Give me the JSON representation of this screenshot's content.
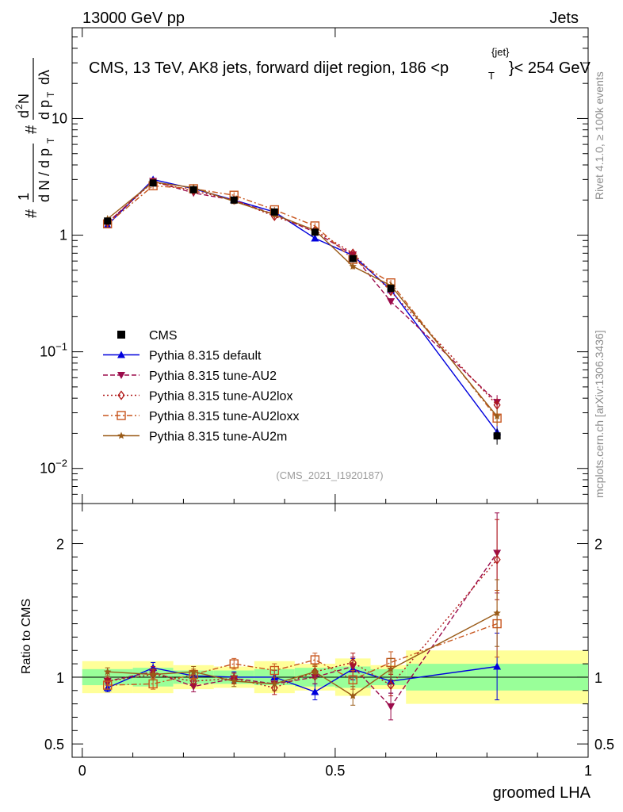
{
  "header": {
    "left_label": "13000 GeV pp",
    "right_label": "Jets"
  },
  "side_labels": {
    "rivet": "Rivet 4.1.0, ≥ 100k events",
    "mcplots": "mcplots.cern.ch [arXiv:1306.3436]"
  },
  "chart_data": {
    "type": "line",
    "title": "CMS, 13 TeV, AK8 jets, forward dijet region, 186 < p_T^{jet} < 254 GeV",
    "title_main": "CMS, 13 TeV, AK8 jets, forward dijet region, 186 <p",
    "title_sub": "T",
    "title_sup": "{jet}",
    "title_tail": "}< 254 GeV",
    "analysis_tag": "(CMS_2021_I1920187)",
    "xlabel": "groomed LHA",
    "ylabel": "1/dN/dp_T  d²N/dp_T dλ",
    "ratio_ylabel": "Ratio to CMS",
    "xlim": [
      -0.02,
      1.0
    ],
    "ylim": [
      0.005,
      60
    ],
    "yscale": "log",
    "ratio_ylim": [
      0.4,
      2.3
    ],
    "x_ticks": [
      "0",
      "0.5",
      "1"
    ],
    "y_ticks": [
      "10^-2",
      "10^-1",
      "1",
      "10"
    ],
    "ratio_ticks": [
      "0.5",
      "1",
      "2"
    ],
    "x": [
      0.05,
      0.14,
      0.22,
      0.3,
      0.38,
      0.46,
      0.535,
      0.61,
      0.82
    ],
    "bin_edges": [
      0.0,
      0.1,
      0.18,
      0.26,
      0.34,
      0.42,
      0.5,
      0.57,
      0.64,
      1.0
    ],
    "data": {
      "name": "CMS",
      "values": [
        1.32,
        2.8,
        2.45,
        2.0,
        1.58,
        1.06,
        0.63,
        0.35,
        0.019
      ],
      "errors": [
        0.06,
        0.1,
        0.08,
        0.07,
        0.06,
        0.05,
        0.03,
        0.02,
        0.003
      ]
    },
    "ratio_bands": {
      "inner": [
        0.06,
        0.07,
        0.05,
        0.05,
        0.06,
        0.07,
        0.08,
        0.06,
        0.1
      ],
      "outer": [
        0.12,
        0.12,
        0.09,
        0.08,
        0.12,
        0.1,
        0.14,
        0.09,
        0.2
      ]
    },
    "legend": {
      "placement": "bottom-left",
      "data_label": "CMS"
    },
    "series": [
      {
        "name": "Pythia 8.315 default",
        "color": "#0000dd",
        "dash": "",
        "marker": "triangle-up",
        "values": [
          1.22,
          3.0,
          2.5,
          2.0,
          1.58,
          0.94,
          0.67,
          0.34,
          0.0205
        ],
        "ratio": [
          0.92,
          1.07,
          1.01,
          1.0,
          1.0,
          0.89,
          1.06,
          0.97,
          1.08
        ],
        "ratio_err": [
          0.03,
          0.04,
          0.04,
          0.04,
          0.05,
          0.06,
          0.08,
          0.09,
          0.25
        ]
      },
      {
        "name": "Pythia 8.315 tune-AU2",
        "color": "#9b0b4b",
        "dash": "6,3",
        "marker": "triangle-down",
        "values": [
          1.28,
          2.9,
          2.3,
          2.0,
          1.5,
          1.06,
          0.68,
          0.27,
          0.037
        ],
        "ratio": [
          0.97,
          1.04,
          0.93,
          0.99,
          0.95,
          1.0,
          1.08,
          0.78,
          1.93
        ],
        "ratio_err": [
          0.03,
          0.04,
          0.04,
          0.04,
          0.05,
          0.05,
          0.07,
          0.1,
          0.3
        ]
      },
      {
        "name": "Pythia 8.315 tune-AU2lox",
        "color": "#b01818",
        "dash": "2,3",
        "marker": "diamond",
        "values": [
          1.28,
          2.85,
          2.4,
          2.0,
          1.45,
          1.1,
          0.7,
          0.33,
          0.035
        ],
        "ratio": [
          0.97,
          1.02,
          0.97,
          0.99,
          0.92,
          1.04,
          1.11,
          0.94,
          1.88
        ],
        "ratio_err": [
          0.03,
          0.04,
          0.04,
          0.04,
          0.05,
          0.05,
          0.07,
          0.08,
          0.3
        ]
      },
      {
        "name": "Pythia 8.315 tune-AU2loxx",
        "color": "#c8561e",
        "dash": "7,3,2,3",
        "marker": "square-open",
        "values": [
          1.25,
          2.65,
          2.5,
          2.2,
          1.65,
          1.2,
          0.62,
          0.39,
          0.027
        ],
        "ratio": [
          0.94,
          0.95,
          1.02,
          1.1,
          1.05,
          1.13,
          0.98,
          1.11,
          1.4
        ],
        "ratio_err": [
          0.03,
          0.04,
          0.04,
          0.04,
          0.05,
          0.05,
          0.07,
          0.08,
          0.25
        ]
      },
      {
        "name": "Pythia 8.315 tune-AU2m",
        "color": "#9a5b18",
        "dash": "",
        "marker": "star",
        "values": [
          1.38,
          2.85,
          2.55,
          1.95,
          1.5,
          1.1,
          0.54,
          0.37,
          0.028
        ],
        "ratio": [
          1.04,
          1.02,
          1.04,
          0.97,
          0.95,
          1.04,
          0.86,
          1.06,
          1.48
        ],
        "ratio_err": [
          0.03,
          0.04,
          0.04,
          0.04,
          0.05,
          0.05,
          0.07,
          0.08,
          0.25
        ]
      }
    ]
  }
}
